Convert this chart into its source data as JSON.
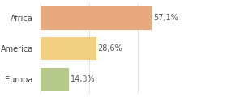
{
  "categories": [
    "Africa",
    "America",
    "Europa"
  ],
  "values": [
    57.1,
    28.6,
    14.3
  ],
  "labels": [
    "57,1%",
    "28,6%",
    "14,3%"
  ],
  "bar_colors": [
    "#e8a97e",
    "#f0d080",
    "#b5c98a"
  ],
  "background_color": "#ffffff",
  "xlim": [
    0,
    75
  ],
  "bar_height": 0.75,
  "label_fontsize": 7.0,
  "tick_fontsize": 7.0,
  "grid_color": "#dddddd",
  "grid_xticks": [
    0,
    25,
    50,
    75
  ]
}
